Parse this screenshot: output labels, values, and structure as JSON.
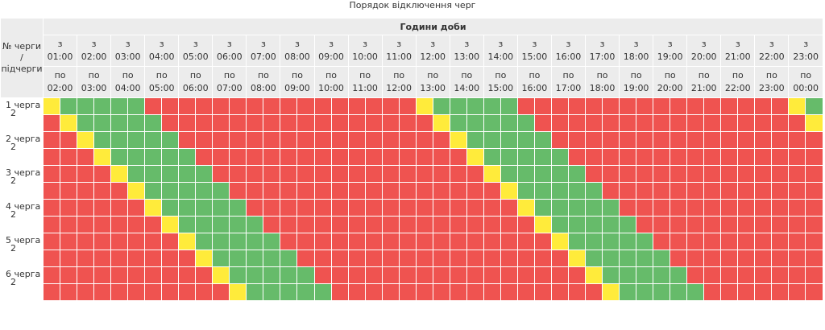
{
  "title": "Порядок відключення черг",
  "table": {
    "group_header": "Години доби",
    "corner_label": [
      "№ черги",
      "/",
      "підчерги"
    ],
    "from_prefix": "з",
    "to_prefix": "по",
    "from_times": [
      "01:00",
      "02:00",
      "03:00",
      "04:00",
      "05:00",
      "06:00",
      "07:00",
      "08:00",
      "09:00",
      "10:00",
      "11:00",
      "12:00",
      "13:00",
      "14:00",
      "15:00",
      "16:00",
      "17:00",
      "18:00",
      "19:00",
      "20:00",
      "21:00",
      "22:00",
      "23:00"
    ],
    "to_times": [
      "02:00",
      "03:00",
      "04:00",
      "05:00",
      "06:00",
      "07:00",
      "08:00",
      "09:00",
      "10:00",
      "11:00",
      "12:00",
      "13:00",
      "14:00",
      "15:00",
      "16:00",
      "17:00",
      "18:00",
      "19:00",
      "20:00",
      "21:00",
      "22:00",
      "23:00",
      "00:00"
    ],
    "queues": [
      {
        "label": "1 черга",
        "sub": "2"
      },
      {
        "label": "2 черга",
        "sub": "2"
      },
      {
        "label": "3 черга",
        "sub": "2"
      },
      {
        "label": "4 черга",
        "sub": "2"
      },
      {
        "label": "5 черга",
        "sub": "2"
      },
      {
        "label": "6 черга",
        "sub": "2"
      }
    ],
    "legend_colors": {
      "off": "#ef5350",
      "on": "#66bb6a",
      "possible": "#ffeb3b"
    },
    "rows": [
      "GRRRRRRRRRRRRRRRRRRRRRRRRRRRRRRRRRRRRRRRRRRRRRRRRRRRRRRRRRRRRRRRRRRRRRRRRRRRRRRRRRRRRRRRRRRRRR",
      "GRRRRRRRRRRRRRRRRRRRRRRRRRRRRRRRRRRRRRRRRRRRRRRRRRRRRRRRRRRRRRRRRRRRRRRRRRRRRRRRRRRRRRRRRRRRRR"
    ]
  }
}
